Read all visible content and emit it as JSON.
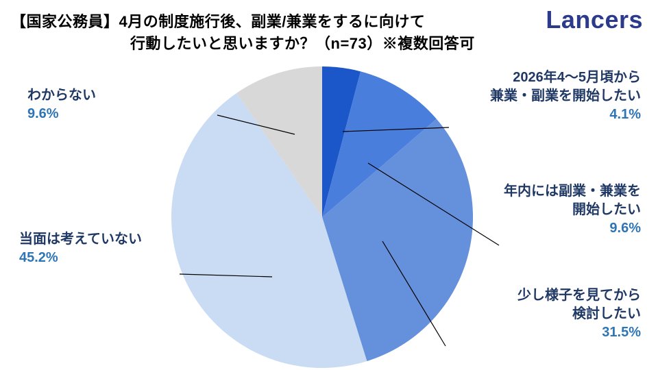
{
  "header": {
    "title_line1": "【国家公務員】4月の制度施行後、副業/兼業をするに向けて",
    "title_line2": "行動したいと思いますか？（n=73）※複数回答可",
    "logo": "Lancers"
  },
  "chart_data": {
    "type": "pie",
    "title": "【国家公務員】4月の制度施行後、副業/兼業をするに向けて行動したいと思いますか？（n=73）※複数回答可",
    "sample_size": "n=73",
    "note": "※複数回答可",
    "unit": "%",
    "start_angle_deg": -90,
    "direction": "clockwise",
    "slices": [
      {
        "label": "2026年4～5月頃から兼業・副業を開始したい",
        "value": 4.1,
        "color": "#1C57C9"
      },
      {
        "label": "年内には副業・兼業を開始したい",
        "value": 9.6,
        "color": "#4A7EDD"
      },
      {
        "label": "少し様子を見てから検討したい",
        "value": 31.5,
        "color": "#6490DC"
      },
      {
        "label": "当面は考えていない",
        "value": 45.2,
        "color": "#C9DCF3"
      },
      {
        "label": "わからない",
        "value": 9.6,
        "color": "#D8D8D8"
      }
    ]
  },
  "callouts": {
    "plan2026": {
      "line1": "2026年4～5月頃から",
      "line2": "兼業・副業を開始したい",
      "pct": "4.1%"
    },
    "year": {
      "line1": "年内には副業・兼業を",
      "line2": "開始したい",
      "pct": "9.6%"
    },
    "wait": {
      "line1": "少し様子を見てから",
      "line2": "検討したい",
      "pct": "31.5%"
    },
    "noplan": {
      "line1": "当面は考えていない",
      "pct": "45.2%"
    },
    "unknown": {
      "line1": "わからない",
      "pct": "9.6%"
    }
  },
  "colors": {
    "pct_text": "#2E75B6",
    "label_text": "#1F3864",
    "logo": "#2C3A8C",
    "leader_line": "#000000"
  }
}
